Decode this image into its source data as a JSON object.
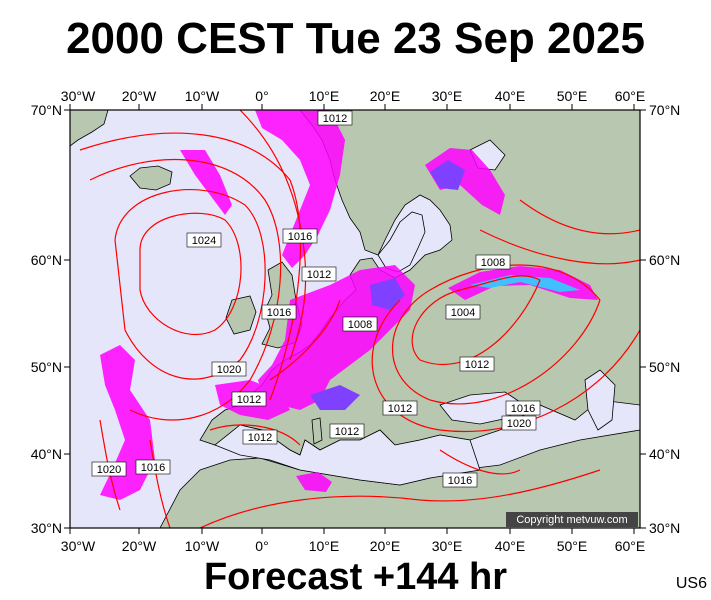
{
  "header": {
    "title": "2000 CEST Tue 23 Sep 2025"
  },
  "footer": {
    "forecast": "Forecast +144 hr",
    "model": "US6"
  },
  "map": {
    "copyright": "Copyright metvuw.com",
    "lon_labels": [
      "30°W",
      "20°W",
      "10°W",
      "0°",
      "10°E",
      "20°E",
      "30°E",
      "40°E",
      "50°E",
      "60°E"
    ],
    "lat_labels": [
      "70°N",
      "60°N",
      "50°N",
      "40°N",
      "30°N"
    ],
    "isobars": [
      {
        "label": "1012"
      },
      {
        "label": "1024"
      },
      {
        "label": "1016"
      },
      {
        "label": "1012"
      },
      {
        "label": "1008"
      },
      {
        "label": "1016"
      },
      {
        "label": "1020"
      },
      {
        "label": "1012"
      },
      {
        "label": "1012"
      },
      {
        "label": "1012"
      },
      {
        "label": "1008"
      },
      {
        "label": "1004"
      },
      {
        "label": "1012"
      },
      {
        "label": "1012"
      },
      {
        "label": "1016"
      },
      {
        "label": "1020"
      },
      {
        "label": "1016"
      },
      {
        "label": "1020"
      },
      {
        "label": "1016"
      }
    ],
    "colors": {
      "ocean": "#e6e6fa",
      "land": "#b8c8b0",
      "isobar": "#ff0000",
      "precip": "#ff00ff"
    }
  }
}
